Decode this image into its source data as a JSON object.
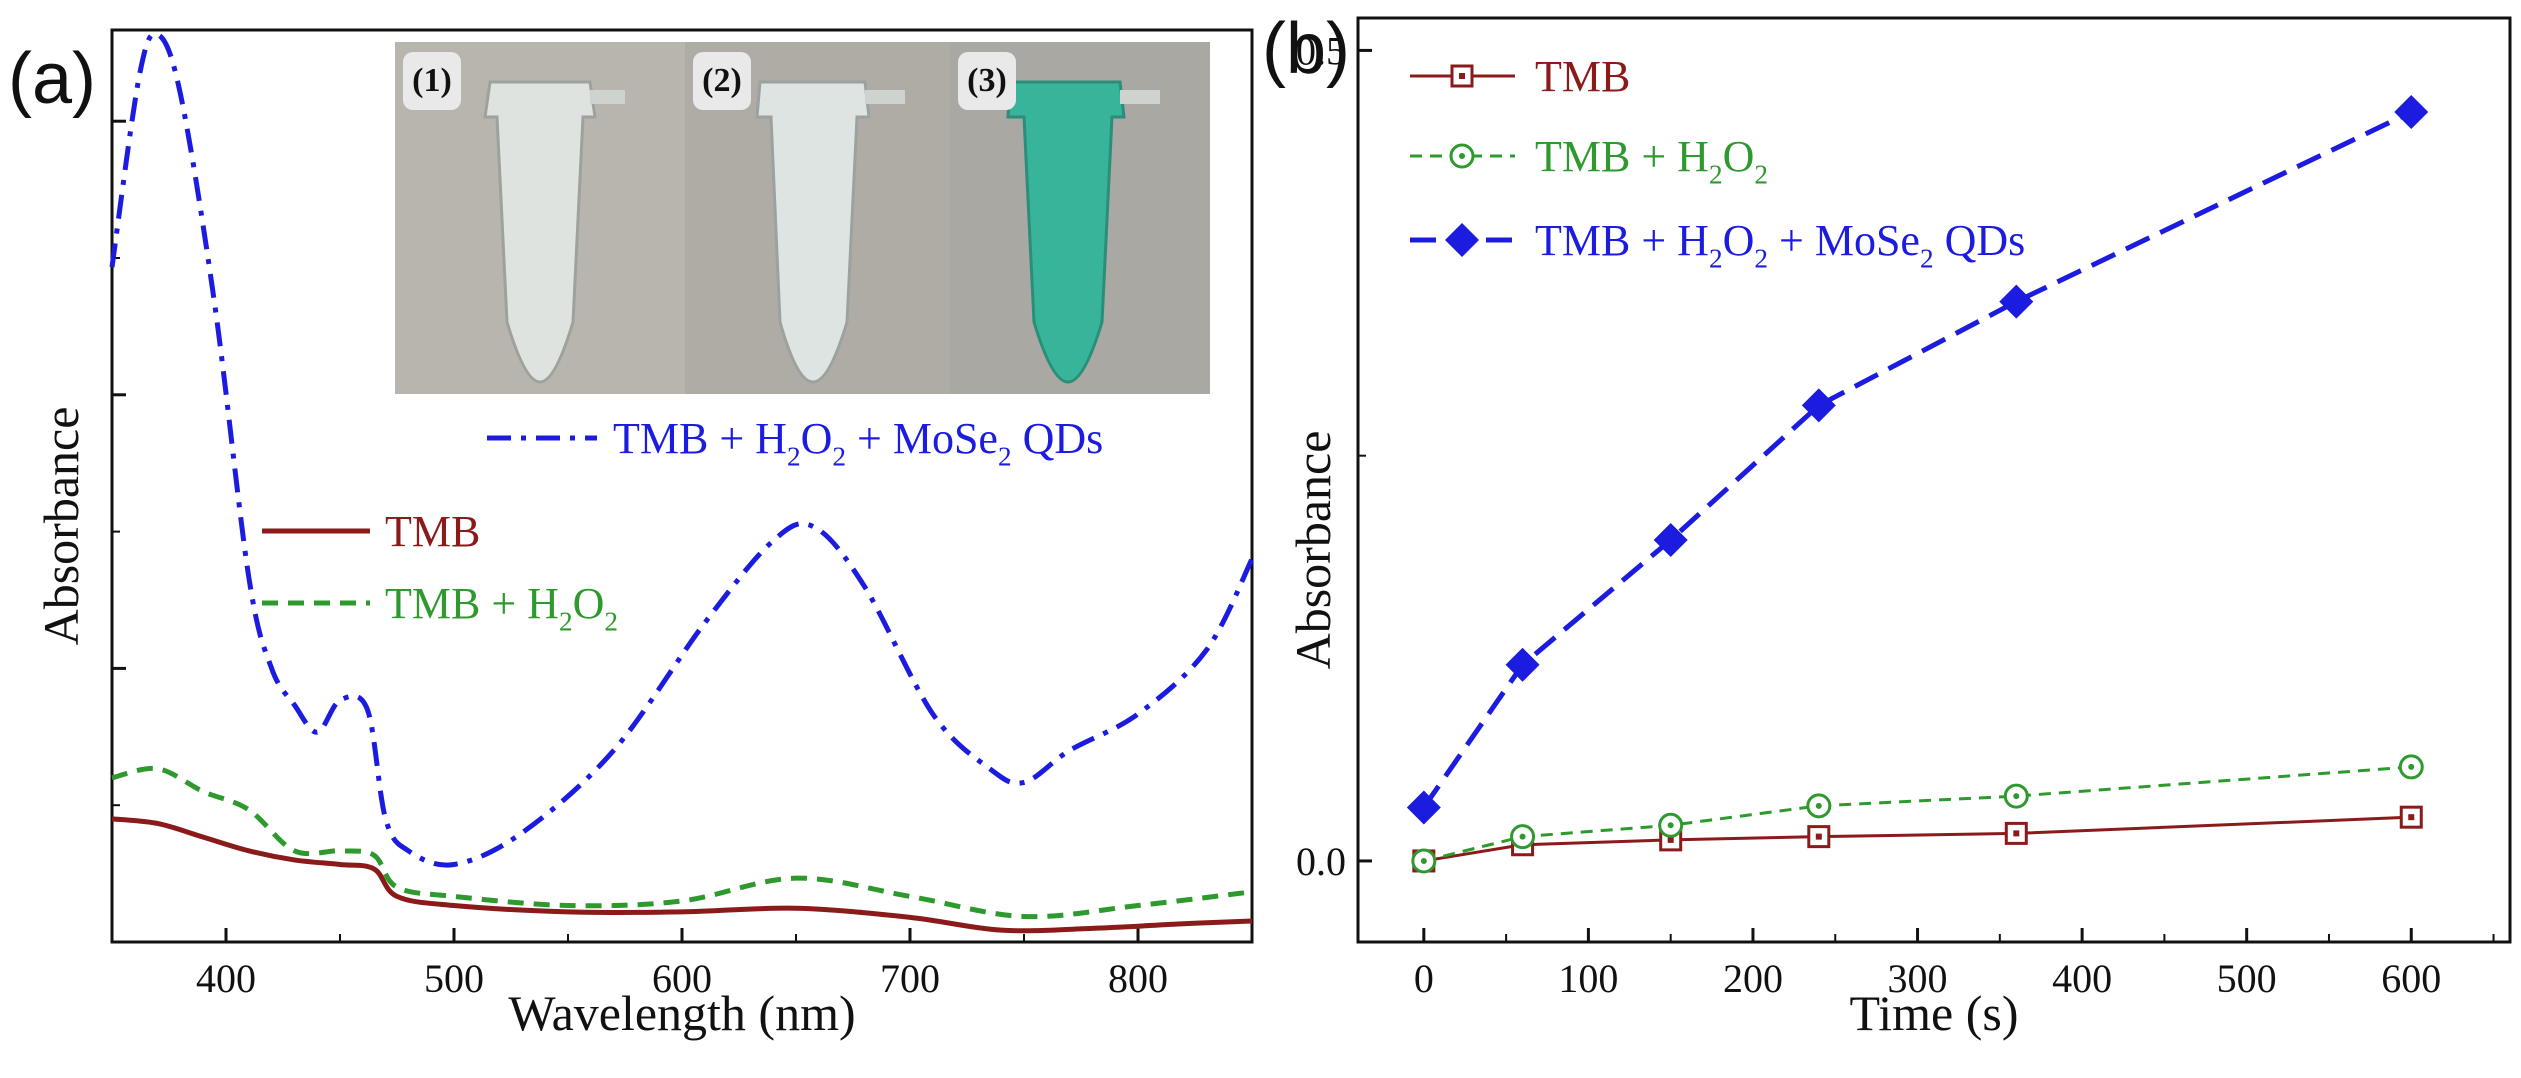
{
  "panels": {
    "a": "(a)",
    "b": "(b)"
  },
  "inset": {
    "tubes": [
      {
        "label": "(1)",
        "liquid": "#dfe3df"
      },
      {
        "label": "(2)",
        "liquid": "#dde4e2"
      },
      {
        "label": "(3)",
        "liquid": "#37b49a"
      }
    ]
  },
  "colors": {
    "tmb": "#8b1a1a",
    "tmb_h2o2": "#2e9a2e",
    "tmb_h2o2_qds": "#1c1ce0"
  },
  "chart_data": [
    {
      "type": "line",
      "panel": "a",
      "xlabel": "Wavelength (nm)",
      "ylabel": "Absorbance",
      "xlim": [
        350,
        850
      ],
      "ylim": [
        0,
        1.0
      ],
      "xticks": [
        "400",
        "500",
        "600",
        "700",
        "800"
      ],
      "yticks_unlabeled": [
        0.3,
        0.6,
        0.9
      ],
      "legend": [
        {
          "name": "TMB + H2O2 + MoSe2 QDs",
          "parts": [
            "TMB + H",
            "2",
            "O",
            "2",
            " + MoSe",
            "2",
            " QDs"
          ]
        },
        {
          "name": "TMB",
          "parts": [
            "TMB"
          ]
        },
        {
          "name": "TMB + H2O2",
          "parts": [
            "TMB + H",
            "2",
            "O",
            "2"
          ]
        }
      ],
      "series": [
        {
          "name": "TMB",
          "style": "solid",
          "x": [
            350,
            370,
            390,
            410,
            430,
            450,
            465,
            475,
            500,
            550,
            600,
            650,
            700,
            740,
            780,
            820,
            850
          ],
          "y": [
            0.135,
            0.13,
            0.115,
            0.1,
            0.09,
            0.085,
            0.08,
            0.05,
            0.04,
            0.033,
            0.033,
            0.037,
            0.027,
            0.013,
            0.015,
            0.02,
            0.023
          ]
        },
        {
          "name": "TMB + H2O2",
          "style": "dashed",
          "x": [
            350,
            370,
            390,
            410,
            430,
            450,
            465,
            475,
            500,
            550,
            600,
            650,
            700,
            750,
            800,
            850
          ],
          "y": [
            0.18,
            0.19,
            0.165,
            0.145,
            0.1,
            0.1,
            0.095,
            0.06,
            0.05,
            0.04,
            0.045,
            0.07,
            0.05,
            0.028,
            0.04,
            0.055
          ]
        },
        {
          "name": "TMB + H2O2 + MoSe2 QDs",
          "style": "dashdot",
          "x": [
            350,
            362,
            370,
            380,
            395,
            410,
            420,
            430,
            440,
            450,
            462,
            470,
            480,
            500,
            530,
            570,
            610,
            640,
            658,
            680,
            710,
            735,
            750,
            770,
            800,
            830,
            850
          ],
          "y": [
            0.74,
            0.95,
            0.995,
            0.93,
            0.7,
            0.4,
            0.3,
            0.26,
            0.23,
            0.265,
            0.255,
            0.135,
            0.1,
            0.085,
            0.12,
            0.21,
            0.35,
            0.44,
            0.455,
            0.39,
            0.25,
            0.19,
            0.175,
            0.21,
            0.25,
            0.32,
            0.42
          ]
        }
      ]
    },
    {
      "type": "line",
      "panel": "b",
      "xlabel": "Time (s)",
      "ylabel": "Absorbance",
      "xlim": [
        -40,
        660
      ],
      "ylim": [
        -0.05,
        0.52
      ],
      "xticks": [
        "0",
        "100",
        "200",
        "300",
        "400",
        "500",
        "600"
      ],
      "yticks": [
        "0.0",
        "0.5"
      ],
      "ytick_values": [
        0.0,
        0.5
      ],
      "ytick_minor": [
        0.25
      ],
      "legend": [
        {
          "name": "TMB",
          "parts": [
            "TMB"
          ]
        },
        {
          "name": "TMB + H2O2",
          "parts": [
            "TMB + H",
            "2",
            "O",
            "2"
          ]
        },
        {
          "name": "TMB + H2O2 + MoSe2 QDs",
          "parts": [
            "TMB + H",
            "2",
            "O",
            "2",
            " + MoSe",
            "2",
            " QDs"
          ]
        }
      ],
      "series": [
        {
          "name": "TMB",
          "marker": "square",
          "style": "solid",
          "x": [
            0,
            60,
            150,
            240,
            360,
            600
          ],
          "y": [
            0.0,
            0.01,
            0.013,
            0.015,
            0.017,
            0.027
          ]
        },
        {
          "name": "TMB + H2O2",
          "marker": "circle",
          "style": "dashed",
          "x": [
            0,
            60,
            150,
            240,
            360,
            600
          ],
          "y": [
            0.0,
            0.015,
            0.022,
            0.034,
            0.04,
            0.058
          ]
        },
        {
          "name": "TMB + H2O2 + MoSe2 QDs",
          "marker": "diamond",
          "style": "dashed",
          "x": [
            0,
            60,
            150,
            240,
            360,
            600
          ],
          "y": [
            0.033,
            0.121,
            0.198,
            0.281,
            0.345,
            0.462
          ]
        }
      ]
    }
  ]
}
